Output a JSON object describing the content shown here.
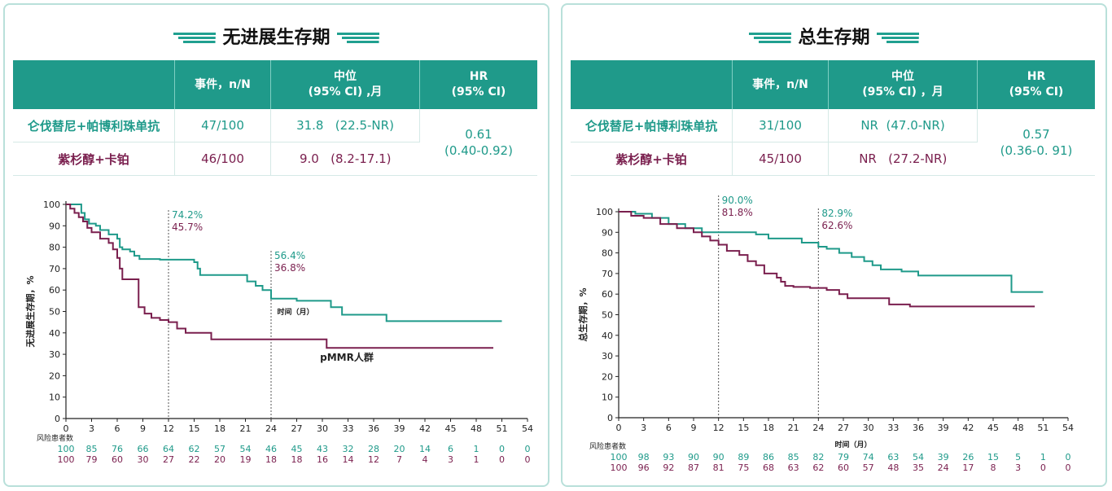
{
  "colors": {
    "arm1": "#1f9a8a",
    "arm2": "#7a1f4e",
    "header": "#1f9a8a"
  },
  "pfs": {
    "title": "无进展生存期",
    "table": {
      "headers": [
        "",
        "事件，n/N",
        "中位\n(95% CI) ,月",
        "HR\n(95% CI)"
      ],
      "rows": [
        {
          "arm": "仑伐替尼+帕博利珠单抗",
          "events": "47/100",
          "median": "31.8   (22.5-NR)"
        },
        {
          "arm": "紫杉醇+卡铂",
          "events": "46/100",
          "median": "9.0   (8.2-17.1)"
        }
      ],
      "hr": "0.61",
      "hr_ci": "(0.40-0.92)"
    }
  },
  "os": {
    "title": "总生存期",
    "table": {
      "headers": [
        "",
        "事件，n/N",
        "中位\n(95% CI) ，月",
        "HR\n(95% CI)"
      ],
      "rows": [
        {
          "arm": "仑伐替尼+帕博利珠单抗",
          "events": "31/100",
          "median": "NR  (47.0-NR)"
        },
        {
          "arm": "紫杉醇+卡铂",
          "events": "45/100",
          "median": "NR   (27.2-NR)"
        }
      ],
      "hr": "0.57",
      "hr_ci": "(0.36-0. 91)"
    }
  },
  "chart_data": [
    {
      "type": "line",
      "ylabel": "无进展生存期，%",
      "xlabel": "时间（月）",
      "xlim": [
        0,
        54
      ],
      "ylim": [
        0,
        100
      ],
      "xticks": [
        0,
        3,
        6,
        9,
        12,
        15,
        18,
        21,
        24,
        27,
        30,
        33,
        36,
        39,
        42,
        45,
        48,
        51,
        54
      ],
      "yticks": [
        0,
        10,
        20,
        30,
        40,
        50,
        60,
        70,
        80,
        90,
        100
      ],
      "annotation": "pMMR人群",
      "risk_title": "风险患者数",
      "risk": {
        "arm1": [
          "100",
          "85",
          "76",
          "66",
          "64",
          "62",
          "57",
          "54",
          "46",
          "45",
          "43",
          "32",
          "28",
          "20",
          "14",
          "6",
          "1",
          "0",
          "0"
        ],
        "arm2": [
          "100",
          "79",
          "60",
          "30",
          "27",
          "22",
          "20",
          "19",
          "18",
          "18",
          "16",
          "14",
          "12",
          "7",
          "4",
          "3",
          "1",
          "0",
          "0"
        ]
      },
      "landmarks": [
        {
          "x": 12,
          "labels": [
            "74.2%",
            "45.7%"
          ]
        },
        {
          "x": 24,
          "labels": [
            "56.4%",
            "36.8%"
          ]
        }
      ],
      "series": [
        {
          "values": [
            [
              0,
              100
            ],
            [
              1.5,
              100
            ],
            [
              1.8,
              96
            ],
            [
              2.2,
              93
            ],
            [
              2.7,
              91
            ],
            [
              3.5,
              90
            ],
            [
              4,
              88
            ],
            [
              5,
              86
            ],
            [
              6,
              84
            ],
            [
              6.3,
              80
            ],
            [
              6.6,
              79
            ],
            [
              7.5,
              78
            ],
            [
              8,
              76
            ],
            [
              8.6,
              74.5
            ],
            [
              11,
              74.2
            ],
            [
              12,
              74.2
            ],
            [
              15,
              73
            ],
            [
              15.4,
              70
            ],
            [
              15.7,
              67
            ],
            [
              20.5,
              67
            ],
            [
              21.2,
              64
            ],
            [
              22.2,
              62
            ],
            [
              23,
              60
            ],
            [
              24,
              56
            ],
            [
              27,
              55
            ],
            [
              30,
              55
            ],
            [
              31,
              52
            ],
            [
              32.3,
              48.5
            ],
            [
              35,
              48.5
            ],
            [
              37.5,
              45.5
            ],
            [
              51,
              45.5
            ]
          ]
        },
        {
          "values": [
            [
              0,
              100
            ],
            [
              0.5,
              98
            ],
            [
              1,
              96
            ],
            [
              1.5,
              94
            ],
            [
              2,
              92
            ],
            [
              2.5,
              89
            ],
            [
              3,
              87
            ],
            [
              4,
              84
            ],
            [
              5,
              82
            ],
            [
              5.5,
              79
            ],
            [
              6,
              75
            ],
            [
              6.3,
              70
            ],
            [
              6.6,
              65
            ],
            [
              8.5,
              65
            ],
            [
              8.5,
              52
            ],
            [
              9.2,
              49
            ],
            [
              10,
              47
            ],
            [
              11,
              46
            ],
            [
              12,
              45
            ],
            [
              13,
              42
            ],
            [
              14,
              40
            ],
            [
              15.5,
              40
            ],
            [
              17,
              37
            ],
            [
              24,
              37
            ],
            [
              29,
              37
            ],
            [
              30.5,
              33
            ],
            [
              50,
              33
            ]
          ]
        }
      ]
    },
    {
      "type": "line",
      "ylabel": "总生存期，%",
      "xlabel": "时间（月）",
      "xlim": [
        0,
        54
      ],
      "ylim": [
        0,
        100
      ],
      "xticks": [
        0,
        3,
        6,
        9,
        12,
        15,
        18,
        21,
        24,
        27,
        30,
        33,
        36,
        39,
        42,
        45,
        48,
        51,
        54
      ],
      "yticks": [
        0,
        10,
        20,
        30,
        40,
        50,
        60,
        70,
        80,
        90,
        100
      ],
      "risk_title": "风险患者数",
      "risk": {
        "arm1": [
          "100",
          "98",
          "93",
          "90",
          "90",
          "89",
          "86",
          "85",
          "82",
          "79",
          "74",
          "63",
          "54",
          "39",
          "26",
          "15",
          "5",
          "1",
          "0"
        ],
        "arm2": [
          "100",
          "96",
          "92",
          "87",
          "81",
          "75",
          "68",
          "63",
          "62",
          "60",
          "57",
          "48",
          "35",
          "24",
          "17",
          "8",
          "3",
          "0",
          "0"
        ]
      },
      "landmarks": [
        {
          "x": 12,
          "labels": [
            "90.0%",
            "81.8%"
          ]
        },
        {
          "x": 24,
          "labels": [
            "82.9%",
            "62.6%"
          ]
        }
      ],
      "series": [
        {
          "values": [
            [
              0,
              100
            ],
            [
              2,
              99
            ],
            [
              4,
              97
            ],
            [
              6,
              94
            ],
            [
              8,
              92
            ],
            [
              10,
              90
            ],
            [
              15,
              90
            ],
            [
              16.5,
              89
            ],
            [
              18,
              87
            ],
            [
              21,
              87
            ],
            [
              22,
              85
            ],
            [
              24,
              83
            ],
            [
              25,
              82
            ],
            [
              26.5,
              80
            ],
            [
              28,
              78
            ],
            [
              29.5,
              76
            ],
            [
              30.5,
              74
            ],
            [
              31.5,
              72
            ],
            [
              34,
              71
            ],
            [
              36,
              69
            ],
            [
              47,
              69
            ],
            [
              47.2,
              61
            ],
            [
              51,
              61
            ]
          ]
        },
        {
          "values": [
            [
              0,
              100
            ],
            [
              1.5,
              98
            ],
            [
              3,
              97
            ],
            [
              5,
              94
            ],
            [
              7,
              92
            ],
            [
              9,
              90
            ],
            [
              10,
              88
            ],
            [
              11,
              86
            ],
            [
              12,
              84
            ],
            [
              13,
              81
            ],
            [
              14.5,
              79
            ],
            [
              15.5,
              76
            ],
            [
              16.5,
              74
            ],
            [
              17.5,
              70
            ],
            [
              19,
              68
            ],
            [
              19.5,
              66
            ],
            [
              20,
              64
            ],
            [
              21,
              63.5
            ],
            [
              23,
              63
            ],
            [
              25,
              62
            ],
            [
              26.5,
              60
            ],
            [
              27.5,
              58
            ],
            [
              31,
              58
            ],
            [
              32.5,
              55
            ],
            [
              35,
              54
            ],
            [
              50,
              54
            ]
          ]
        }
      ]
    }
  ]
}
